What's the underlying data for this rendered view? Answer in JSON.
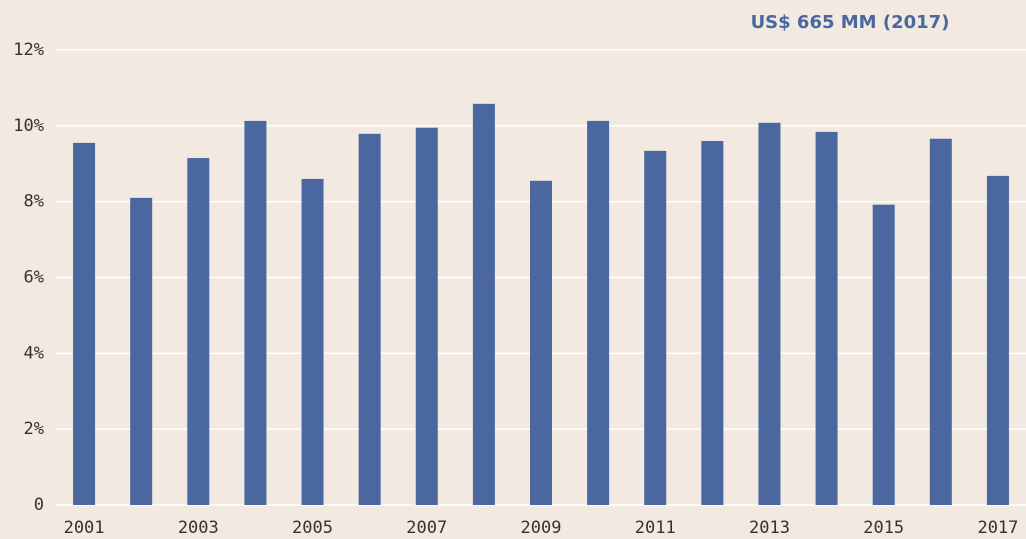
{
  "chart_data": {
    "type": "bar",
    "annotation": "US$ 665 MM (2017)",
    "categories": [
      "2001",
      null,
      "2003",
      null,
      "2005",
      null,
      "2007",
      null,
      "2009",
      null,
      "2011",
      null,
      "2013",
      null,
      "2015",
      null,
      "2017"
    ],
    "values": [
      9.55,
      8.1,
      9.15,
      10.13,
      8.6,
      9.79,
      9.95,
      10.58,
      8.55,
      10.13,
      9.34,
      9.6,
      10.08,
      9.84,
      7.92,
      9.66,
      8.68
    ],
    "color": "#4a67a0",
    "ylim": [
      0,
      12
    ],
    "yticks": [
      0,
      {
        "value": 2,
        "label": "2%"
      },
      {
        "value": 4,
        "label": "4%"
      },
      {
        "value": 6,
        "label": "6%"
      },
      {
        "value": 8,
        "label": "8%"
      },
      {
        "value": 10,
        "label": "10%"
      },
      {
        "value": 12,
        "label": "12%"
      }
    ],
    "grid": true
  }
}
